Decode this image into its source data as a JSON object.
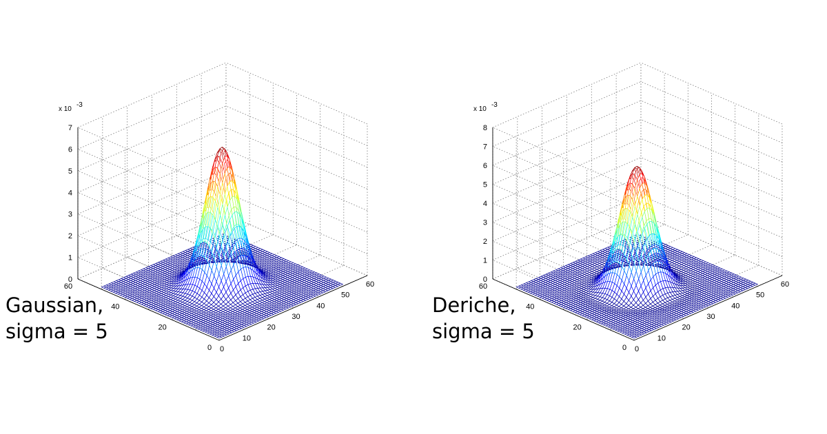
{
  "chart_data": [
    {
      "type": "surface",
      "caption_lines": [
        "Gaussian,",
        "sigma = 5"
      ],
      "z_exponent_label": "x 10",
      "z_exponent_power": "-3",
      "x_ticks": [
        "0",
        "10",
        "20",
        "30",
        "40",
        "50",
        "60"
      ],
      "y_ticks": [
        "0",
        "20",
        "40",
        "60"
      ],
      "z_ticks": [
        "0",
        "1",
        "2",
        "3",
        "4",
        "5",
        "6",
        "7"
      ],
      "xlim": [
        0,
        60
      ],
      "ylim": [
        0,
        60
      ],
      "zlim": [
        0,
        7
      ],
      "grid": true,
      "colormap": "jet",
      "surface": {
        "x_range": [
          1,
          51
        ],
        "y_range": [
          1,
          51
        ],
        "center": [
          26,
          26
        ],
        "sigma": 5,
        "peak_z": 6.4,
        "ring_depth": 0,
        "samples_per_axis": 51
      }
    },
    {
      "type": "surface",
      "caption_lines": [
        "Deriche,",
        "sigma = 5"
      ],
      "z_exponent_label": "x 10",
      "z_exponent_power": "-3",
      "x_ticks": [
        "0",
        "10",
        "20",
        "30",
        "40",
        "50",
        "60"
      ],
      "y_ticks": [
        "0",
        "20",
        "40",
        "60"
      ],
      "z_ticks": [
        "0",
        "1",
        "2",
        "3",
        "4",
        "5",
        "6",
        "7",
        "8"
      ],
      "xlim": [
        0,
        60
      ],
      "ylim": [
        0,
        60
      ],
      "zlim": [
        0,
        8
      ],
      "grid": true,
      "colormap": "jet",
      "surface": {
        "x_range": [
          1,
          51
        ],
        "y_range": [
          1,
          51
        ],
        "center": [
          26,
          26
        ],
        "sigma": 5,
        "peak_z": 6.3,
        "ring_depth": 0.15,
        "samples_per_axis": 51
      }
    }
  ]
}
